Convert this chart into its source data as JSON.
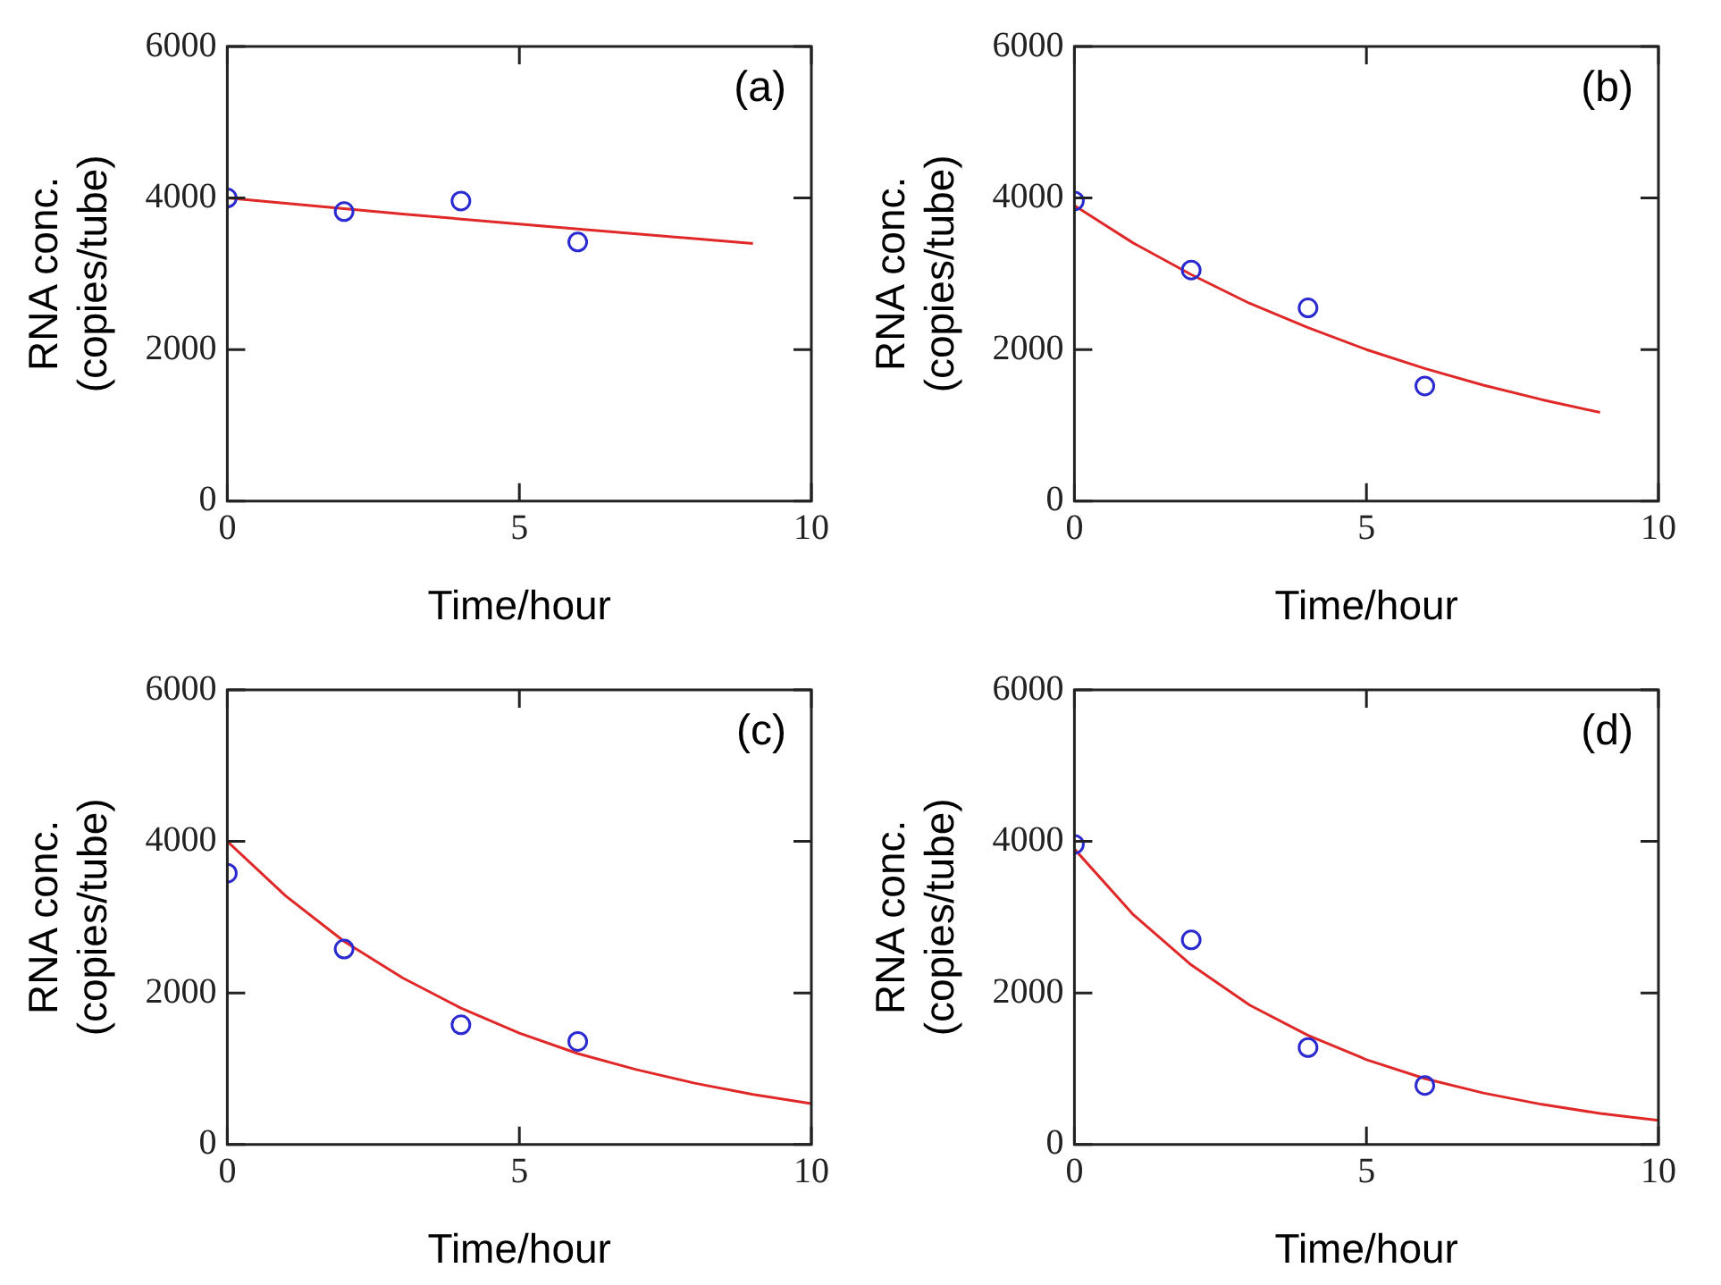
{
  "chart_data": [
    {
      "type": "scatter",
      "xlabel": "Time/hour",
      "ylabel": "RNA conc.\n(copies/tube)",
      "annotations": [
        "(a)"
      ],
      "xlim": [
        0,
        10
      ],
      "xticks": [
        0,
        5,
        10
      ],
      "ylim": [
        0,
        6000
      ],
      "yticks": [
        0,
        2000,
        4000,
        6000
      ],
      "grid": false,
      "series": [
        {
          "type": "scatter",
          "marker": "circle",
          "color": "#2a2ad0",
          "x": [
            0,
            2,
            4,
            6
          ],
          "values": [
            4000,
            3820,
            3960,
            3420
          ]
        },
        {
          "type": "line",
          "marker": "none",
          "color": "#e02828",
          "x": [
            0,
            3,
            6,
            9
          ],
          "values": [
            4000,
            3790,
            3590,
            3400
          ]
        }
      ]
    },
    {
      "type": "scatter",
      "xlabel": "Time/hour",
      "ylabel": "RNA conc.\n(copies/tube)",
      "annotations": [
        "(b)"
      ],
      "xlim": [
        0,
        10
      ],
      "xticks": [
        0,
        5,
        10
      ],
      "ylim": [
        0,
        6000
      ],
      "yticks": [
        0,
        2000,
        4000,
        6000
      ],
      "grid": false,
      "series": [
        {
          "type": "scatter",
          "marker": "circle",
          "color": "#2a2ad0",
          "x": [
            0,
            2,
            4,
            6
          ],
          "values": [
            3960,
            3050,
            2550,
            1520
          ]
        },
        {
          "type": "line",
          "marker": "none",
          "color": "#e02828",
          "x": [
            0,
            1,
            2,
            3,
            4,
            5,
            6,
            7,
            8,
            9
          ],
          "values": [
            3900,
            3410,
            2990,
            2610,
            2290,
            2000,
            1750,
            1530,
            1340,
            1170
          ]
        }
      ]
    },
    {
      "type": "scatter",
      "xlabel": "Time/hour",
      "ylabel": "RNA conc.\n(copies/tube)",
      "annotations": [
        "(c)"
      ],
      "xlim": [
        0,
        10
      ],
      "xticks": [
        0,
        5,
        10
      ],
      "ylim": [
        0,
        6000
      ],
      "yticks": [
        0,
        2000,
        4000,
        6000
      ],
      "grid": false,
      "series": [
        {
          "type": "scatter",
          "marker": "circle",
          "color": "#2a2ad0",
          "x": [
            0,
            2,
            4,
            6
          ],
          "values": [
            3580,
            2580,
            1580,
            1360
          ]
        },
        {
          "type": "line",
          "marker": "none",
          "color": "#e02828",
          "x": [
            0,
            1,
            2,
            3,
            4,
            5,
            6,
            7,
            8,
            9,
            10
          ],
          "values": [
            4000,
            3280,
            2680,
            2200,
            1800,
            1470,
            1200,
            990,
            810,
            660,
            540
          ]
        }
      ]
    },
    {
      "type": "scatter",
      "xlabel": "Time/hour",
      "ylabel": "RNA conc.\n(copies/tube)",
      "annotations": [
        "(d)"
      ],
      "xlim": [
        0,
        10
      ],
      "xticks": [
        0,
        5,
        10
      ],
      "ylim": [
        0,
        6000
      ],
      "yticks": [
        0,
        2000,
        4000,
        6000
      ],
      "grid": false,
      "series": [
        {
          "type": "scatter",
          "marker": "circle",
          "color": "#2a2ad0",
          "x": [
            0,
            2,
            4,
            6
          ],
          "values": [
            3960,
            2700,
            1280,
            780
          ]
        },
        {
          "type": "line",
          "marker": "none",
          "color": "#e02828",
          "x": [
            0,
            1,
            2,
            3,
            4,
            5,
            6,
            7,
            8,
            9,
            10
          ],
          "values": [
            3900,
            3040,
            2370,
            1840,
            1440,
            1120,
            870,
            680,
            530,
            410,
            320
          ]
        }
      ]
    }
  ]
}
